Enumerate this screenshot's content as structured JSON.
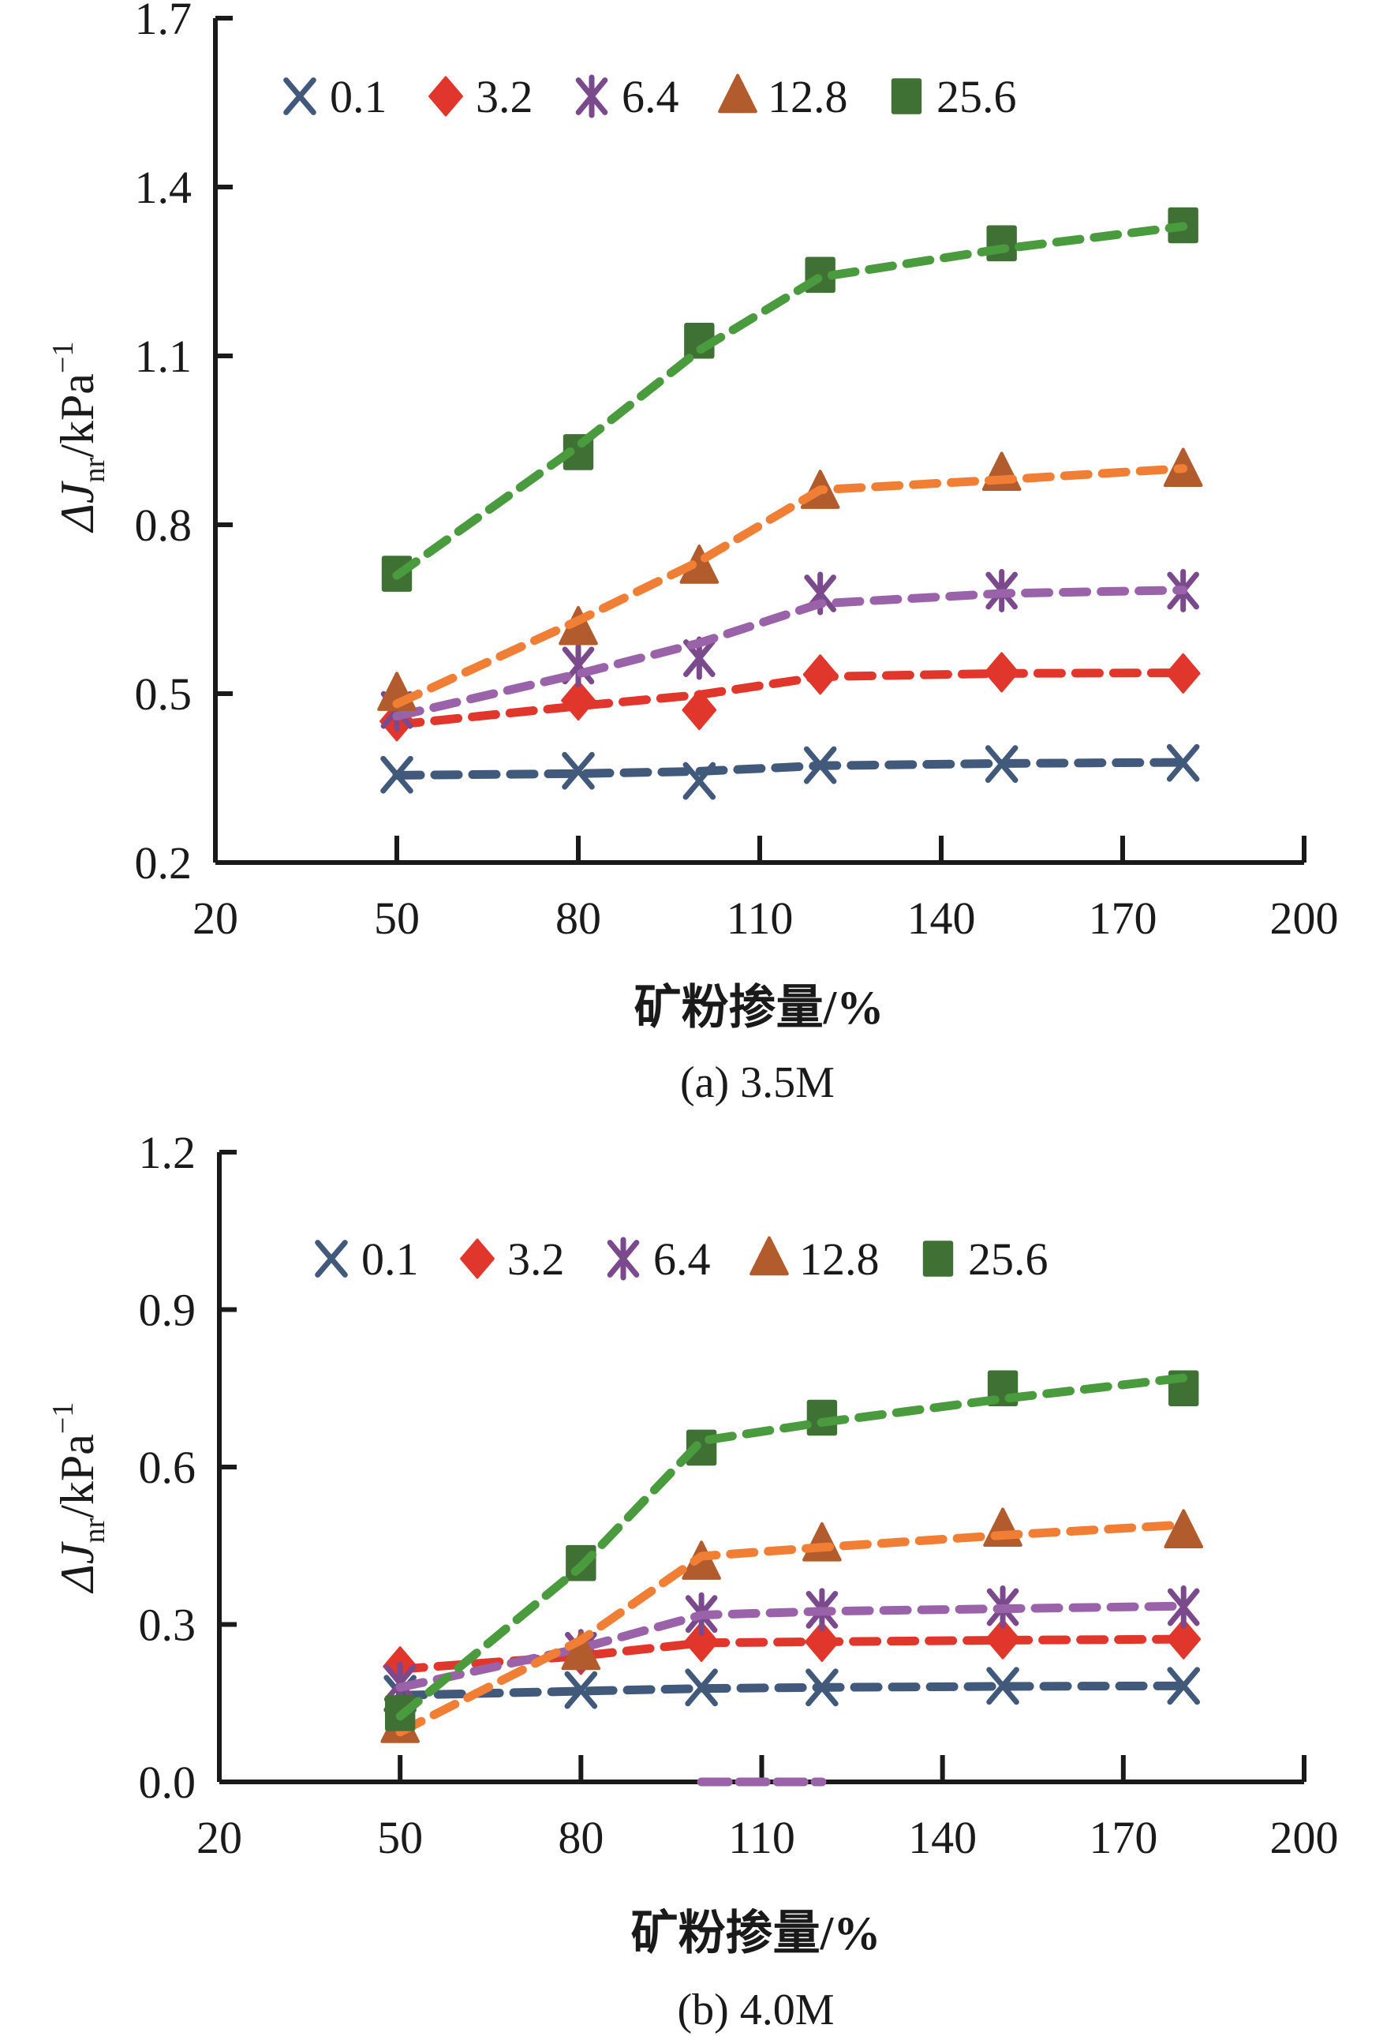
{
  "chart_data": [
    {
      "type": "line",
      "panel": "a",
      "caption": "(a) 3.5M",
      "xlabel": "矿粉掺量/%",
      "ylabel_main": "ΔJ",
      "ylabel_sub": "nr",
      "ylabel_unit": "/kPa",
      "ylabel_sup": "−1",
      "xlim": [
        20,
        200
      ],
      "ylim": [
        0.2,
        1.7
      ],
      "xticks": [
        20,
        50,
        80,
        110,
        140,
        170,
        200
      ],
      "yticks": [
        0.2,
        0.5,
        0.8,
        1.1,
        1.4,
        1.7
      ],
      "ytick_labels": [
        "0.2",
        "0.5",
        "0.8",
        "1.1",
        "1.4",
        "1.7"
      ],
      "xtick_labels": [
        "20",
        "50",
        "80",
        "110",
        "140",
        "170",
        "200"
      ],
      "legend_position": "top",
      "grid": false,
      "x": [
        50,
        80,
        100,
        120,
        150,
        180
      ],
      "series": [
        {
          "name": "0.1",
          "marker": "x",
          "color": "#41597a",
          "values": [
            0.356,
            0.363,
            0.345,
            0.373,
            0.375,
            0.377
          ],
          "fit": [
            0.355,
            0.358,
            0.362,
            0.372,
            0.376,
            0.378
          ]
        },
        {
          "name": "3.2",
          "marker": "diamond",
          "color": "#e0362b",
          "values": [
            0.451,
            0.488,
            0.471,
            0.534,
            0.538,
            0.536
          ],
          "fit": [
            0.445,
            0.478,
            0.498,
            0.53,
            0.536,
            0.537
          ]
        },
        {
          "name": "6.4",
          "marker": "asterisk",
          "color": "#7b4a8c",
          "line_color": "#9a62a8",
          "values": [
            0.471,
            0.55,
            0.563,
            0.678,
            0.683,
            0.683
          ],
          "fit": [
            0.46,
            0.535,
            0.59,
            0.66,
            0.678,
            0.684
          ]
        },
        {
          "name": "12.8",
          "marker": "triangle",
          "color": "#b25b2c",
          "line_color": "#f07f35",
          "values": [
            0.499,
            0.616,
            0.725,
            0.858,
            0.89,
            0.897
          ],
          "fit": [
            0.482,
            0.63,
            0.735,
            0.862,
            0.88,
            0.9
          ]
        },
        {
          "name": "25.6",
          "marker": "square",
          "color": "#3f7034",
          "line_color": "#4a9a3e",
          "values": [
            0.713,
            0.929,
            1.127,
            1.244,
            1.3,
            1.332
          ],
          "fit": [
            0.71,
            0.94,
            1.11,
            1.24,
            1.29,
            1.33
          ]
        }
      ]
    },
    {
      "type": "line",
      "panel": "b",
      "caption": "(b) 4.0M",
      "xlabel": "矿粉掺量/%",
      "ylabel_main": "ΔJ",
      "ylabel_sub": "nr",
      "ylabel_unit": "/kPa",
      "ylabel_sup": "−1",
      "xlim": [
        20,
        200
      ],
      "ylim": [
        0.0,
        1.2
      ],
      "xticks": [
        20,
        50,
        80,
        110,
        140,
        170,
        200
      ],
      "yticks": [
        0.0,
        0.3,
        0.6,
        0.9,
        1.2
      ],
      "ytick_labels": [
        "0.0",
        "0.3",
        "0.6",
        "0.9",
        "1.2"
      ],
      "xtick_labels": [
        "20",
        "50",
        "80",
        "110",
        "140",
        "170",
        "200"
      ],
      "legend_position": "top",
      "grid": false,
      "x": [
        50,
        80,
        100,
        120,
        150,
        180
      ],
      "series": [
        {
          "name": "0.1",
          "marker": "x",
          "color": "#41597a",
          "values": [
            0.168,
            0.175,
            0.18,
            0.18,
            0.183,
            0.183
          ],
          "fit": [
            0.165,
            0.173,
            0.178,
            0.18,
            0.182,
            0.183
          ]
        },
        {
          "name": "3.2",
          "marker": "diamond",
          "color": "#e0362b",
          "values": [
            0.22,
            0.242,
            0.267,
            0.267,
            0.272,
            0.272
          ],
          "fit": [
            0.215,
            0.24,
            0.265,
            0.267,
            0.27,
            0.272
          ]
        },
        {
          "name": "6.4",
          "marker": "asterisk",
          "color": "#7b4a8c",
          "line_color": "#9a62a8",
          "values": [
            0.188,
            0.25,
            0.32,
            0.328,
            0.333,
            0.333
          ],
          "fit": [
            0.18,
            0.255,
            0.318,
            0.325,
            0.33,
            0.335
          ]
        },
        {
          "name": "12.8",
          "marker": "triangle",
          "color": "#b25b2c",
          "line_color": "#f07f35",
          "values": [
            0.106,
            0.245,
            0.417,
            0.452,
            0.48,
            0.477
          ],
          "fit": [
            0.095,
            0.27,
            0.43,
            0.447,
            0.47,
            0.49
          ]
        },
        {
          "name": "25.6",
          "marker": "square",
          "color": "#3f7034",
          "line_color": "#4a9a3e",
          "values": [
            0.131,
            0.417,
            0.637,
            0.694,
            0.75,
            0.75
          ],
          "fit": [
            0.125,
            0.41,
            0.65,
            0.685,
            0.73,
            0.77
          ]
        }
      ],
      "stray_segment": {
        "series": "6.4",
        "x": [
          100,
          120
        ],
        "y": [
          0.0,
          0.0
        ]
      }
    }
  ]
}
